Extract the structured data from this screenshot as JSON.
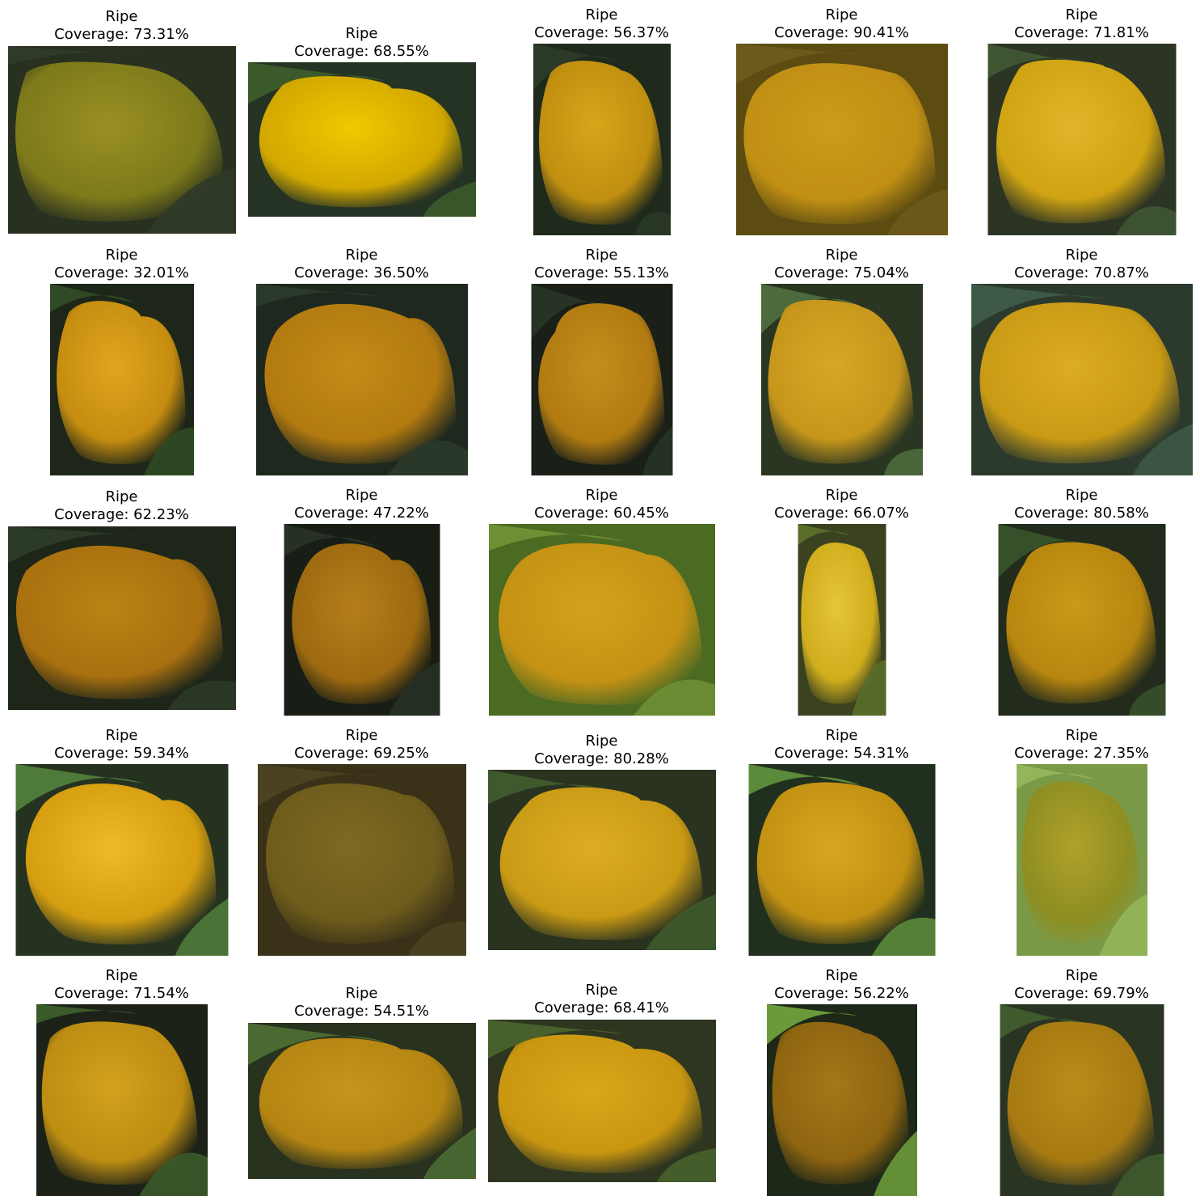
{
  "grid": {
    "columns": 5,
    "rows": 5,
    "cells": [
      {
        "label": "Ripe",
        "coverage": "Coverage: 73.31%",
        "image": "pepper-crop",
        "palette": {
          "bg": "#283020",
          "fruit": "#7d7a1a",
          "highlight": "#9a8f24",
          "leaf": "#2f3a28"
        }
      },
      {
        "label": "Ripe",
        "coverage": "Coverage: 68.55%",
        "image": "pepper-crop",
        "palette": {
          "bg": "#253324",
          "fruit": "#d2a800",
          "highlight": "#f0c900",
          "leaf": "#3b5a2a"
        }
      },
      {
        "label": "Ripe",
        "coverage": "Coverage: 56.37%",
        "image": "pepper-crop",
        "palette": {
          "bg": "#1f2a1c",
          "fruit": "#c08f10",
          "highlight": "#d6a71a",
          "leaf": "#2a3a26"
        }
      },
      {
        "label": "Ripe",
        "coverage": "Coverage: 90.41%",
        "image": "pepper-crop",
        "palette": {
          "bg": "#5c4c12",
          "fruit": "#c08f14",
          "highlight": "#cc9c1c",
          "leaf": "#6b5a1c"
        }
      },
      {
        "label": "Ripe",
        "coverage": "Coverage: 71.81%",
        "image": "pepper-crop",
        "palette": {
          "bg": "#2c3424",
          "fruit": "#cfa312",
          "highlight": "#e0b52a",
          "leaf": "#3f5532"
        }
      },
      {
        "label": "Ripe",
        "coverage": "Coverage: 32.01%",
        "image": "pepper-crop",
        "palette": {
          "bg": "#1d2618",
          "fruit": "#c58c10",
          "highlight": "#e1a61e",
          "leaf": "#2f4a24"
        }
      },
      {
        "label": "Ripe",
        "coverage": "Coverage: 36.50%",
        "image": "pepper-crop",
        "palette": {
          "bg": "#1e281e",
          "fruit": "#b37a10",
          "highlight": "#c38b16",
          "leaf": "#2a3a2a"
        }
      },
      {
        "label": "Ripe",
        "coverage": "Coverage: 55.13%",
        "image": "pepper-crop",
        "palette": {
          "bg": "#1a2018",
          "fruit": "#b27b12",
          "highlight": "#c48d1c",
          "leaf": "#273325"
        }
      },
      {
        "label": "Ripe",
        "coverage": "Coverage: 75.04%",
        "image": "pepper-crop",
        "palette": {
          "bg": "#2a3622",
          "fruit": "#c6961b",
          "highlight": "#d6a826",
          "leaf": "#4b6b3c"
        }
      },
      {
        "label": "Ripe",
        "coverage": "Coverage: 70.87%",
        "image": "pepper-crop",
        "palette": {
          "bg": "#2c3a2e",
          "fruit": "#c99a14",
          "highlight": "#dcad22",
          "leaf": "#3c5a45"
        }
      },
      {
        "label": "Ripe",
        "coverage": "Coverage: 62.23%",
        "image": "pepper-crop",
        "palette": {
          "bg": "#1e261a",
          "fruit": "#a9700f",
          "highlight": "#b88515",
          "leaf": "#2c3a28"
        }
      },
      {
        "label": "Ripe",
        "coverage": "Coverage: 47.22%",
        "image": "pepper-crop",
        "palette": {
          "bg": "#181e16",
          "fruit": "#9e6a10",
          "highlight": "#b47e1a",
          "leaf": "#263024"
        }
      },
      {
        "label": "Ripe",
        "coverage": "Coverage: 60.45%",
        "image": "pepper-crop",
        "palette": {
          "bg": "#4b6a22",
          "fruit": "#c59214",
          "highlight": "#d3a21c",
          "leaf": "#6e8f34"
        }
      },
      {
        "label": "Ripe",
        "coverage": "Coverage: 66.07%",
        "image": "pepper-crop",
        "palette": {
          "bg": "#3a4220",
          "fruit": "#d0ad1c",
          "highlight": "#e5c53a",
          "leaf": "#5a6e2a"
        }
      },
      {
        "label": "Ripe",
        "coverage": "Coverage: 80.58%",
        "image": "pepper-crop",
        "palette": {
          "bg": "#232c1c",
          "fruit": "#b7860f",
          "highlight": "#c99a1a",
          "leaf": "#36502a"
        }
      },
      {
        "label": "Ripe",
        "coverage": "Coverage: 59.34%",
        "image": "pepper-crop",
        "palette": {
          "bg": "#263220",
          "fruit": "#d59e10",
          "highlight": "#efb92a",
          "leaf": "#4e7a3a"
        }
      },
      {
        "label": "Ripe",
        "coverage": "Coverage: 69.25%",
        "image": "pepper-crop",
        "palette": {
          "bg": "#3a3218",
          "fruit": "#6e5c1c",
          "highlight": "#7d6a22",
          "leaf": "#4a4220"
        }
      },
      {
        "label": "Ripe",
        "coverage": "Coverage: 80.28%",
        "image": "pepper-crop",
        "palette": {
          "bg": "#2a3220",
          "fruit": "#c99a14",
          "highlight": "#ddae24",
          "leaf": "#3e5a2c"
        }
      },
      {
        "label": "Ripe",
        "coverage": "Coverage: 54.31%",
        "image": "pepper-crop",
        "palette": {
          "bg": "#21301e",
          "fruit": "#c39112",
          "highlight": "#d8a720",
          "leaf": "#5b8a3a"
        }
      },
      {
        "label": "Ripe",
        "coverage": "Coverage: 27.35%",
        "image": "pepper-crop",
        "palette": {
          "bg": "#7a9a48",
          "fruit": "#8e8e22",
          "highlight": "#b0a12a",
          "leaf": "#94b65a"
        }
      },
      {
        "label": "Ripe",
        "coverage": "Coverage: 71.54%",
        "image": "pepper-crop",
        "palette": {
          "bg": "#1c2218",
          "fruit": "#bd8d12",
          "highlight": "#d2a11e",
          "leaf": "#3a5a2a"
        }
      },
      {
        "label": "Ripe",
        "coverage": "Coverage: 54.51%",
        "image": "pepper-crop",
        "palette": {
          "bg": "#28321e",
          "fruit": "#b58512",
          "highlight": "#c6951c",
          "leaf": "#4a6a32"
        }
      },
      {
        "label": "Ripe",
        "coverage": "Coverage: 68.41%",
        "image": "pepper-crop",
        "palette": {
          "bg": "#2e3620",
          "fruit": "#c99610",
          "highlight": "#d9a81a",
          "leaf": "#48602c"
        }
      },
      {
        "label": "Ripe",
        "coverage": "Coverage: 56.22%",
        "image": "pepper-crop",
        "palette": {
          "bg": "#1e2818",
          "fruit": "#8e6410",
          "highlight": "#a5771a",
          "leaf": "#6a9a3a"
        }
      },
      {
        "label": "Ripe",
        "coverage": "Coverage: 69.79%",
        "image": "pepper-crop",
        "palette": {
          "bg": "#2a3422",
          "fruit": "#a77a12",
          "highlight": "#b98c1a",
          "leaf": "#3f5a2c"
        }
      }
    ]
  }
}
